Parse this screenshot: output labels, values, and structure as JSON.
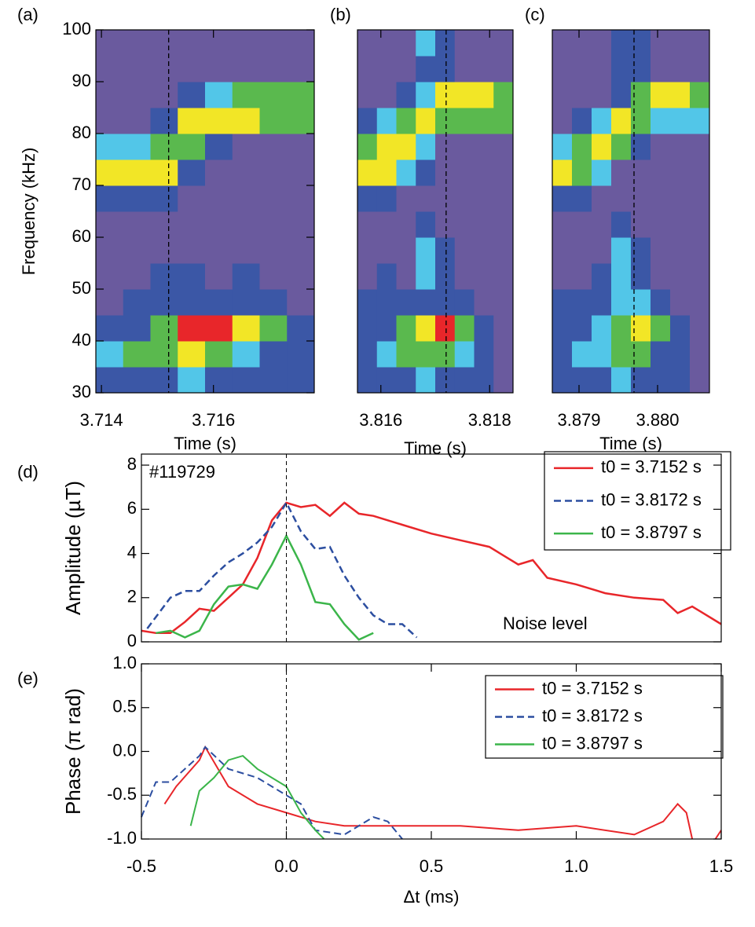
{
  "chart_data": [
    {
      "type": "heatmap",
      "label": "(a)",
      "ylabel": "Frequency (kHz)",
      "xlabel": "Time (s)",
      "xlim": [
        3.7139,
        3.7178
      ],
      "ylim": [
        30,
        100
      ],
      "xticks": [
        3.714,
        3.716
      ],
      "yticks": [
        30,
        40,
        50,
        60,
        70,
        80,
        90,
        100
      ],
      "marker": 3.7152,
      "colormap": [
        "#6a5a9e",
        "#3b57a6",
        "#52c6e8",
        "#5ab94e",
        "#f2e626",
        "#e8262a"
      ],
      "z": [
        [
          1,
          1,
          1,
          2,
          1,
          1,
          1,
          1
        ],
        [
          2,
          3,
          3,
          4,
          3,
          2,
          1,
          1
        ],
        [
          1,
          1,
          3,
          5,
          5,
          4,
          3,
          1
        ],
        [
          0,
          1,
          1,
          1,
          1,
          1,
          1,
          0
        ],
        [
          0,
          0,
          1,
          1,
          0,
          1,
          0,
          0
        ],
        [
          0,
          0,
          0,
          0,
          0,
          0,
          0,
          0
        ],
        [
          0,
          0,
          0,
          0,
          0,
          0,
          0,
          0
        ],
        [
          1,
          1,
          1,
          0,
          0,
          0,
          0,
          0
        ],
        [
          4,
          4,
          4,
          1,
          0,
          0,
          0,
          0
        ],
        [
          2,
          2,
          3,
          3,
          1,
          0,
          0,
          0
        ],
        [
          0,
          0,
          1,
          4,
          4,
          4,
          3,
          3
        ],
        [
          0,
          0,
          0,
          1,
          2,
          3,
          3,
          3
        ],
        [
          0,
          0,
          0,
          0,
          0,
          0,
          0,
          0
        ],
        [
          0,
          0,
          0,
          0,
          0,
          0,
          0,
          0
        ]
      ]
    },
    {
      "type": "heatmap",
      "label": "(b)",
      "xlabel": "Time (s)",
      "xlim": [
        3.81557,
        3.81843
      ],
      "ylim": [
        30,
        100
      ],
      "xticks": [
        3.816,
        3.818
      ],
      "marker": 3.8172,
      "colormap": [
        "#6a5a9e",
        "#3b57a6",
        "#52c6e8",
        "#5ab94e",
        "#f2e626",
        "#e8262a"
      ],
      "z": [
        [
          1,
          1,
          1,
          2,
          1,
          1,
          1,
          0
        ],
        [
          1,
          2,
          3,
          3,
          3,
          2,
          1,
          0
        ],
        [
          1,
          1,
          3,
          4,
          5,
          3,
          1,
          0
        ],
        [
          1,
          1,
          1,
          1,
          1,
          1,
          0,
          0
        ],
        [
          0,
          1,
          0,
          2,
          1,
          0,
          0,
          0
        ],
        [
          0,
          0,
          0,
          2,
          1,
          0,
          0,
          0
        ],
        [
          0,
          0,
          0,
          1,
          0,
          0,
          0,
          0
        ],
        [
          1,
          1,
          0,
          0,
          0,
          0,
          0,
          0
        ],
        [
          4,
          4,
          2,
          1,
          0,
          0,
          0,
          0
        ],
        [
          3,
          4,
          4,
          2,
          0,
          0,
          0,
          0
        ],
        [
          1,
          2,
          3,
          4,
          3,
          3,
          3,
          3
        ],
        [
          0,
          0,
          1,
          2,
          4,
          4,
          4,
          3
        ],
        [
          0,
          0,
          0,
          1,
          1,
          0,
          0,
          0
        ],
        [
          0,
          0,
          0,
          2,
          1,
          0,
          0,
          0
        ]
      ]
    },
    {
      "type": "heatmap",
      "label": "(c)",
      "xlabel": "Time (s)",
      "xlim": [
        3.87866,
        3.88066
      ],
      "ylim": [
        30,
        100
      ],
      "xticks": [
        3.879,
        {
          "value": 3.88,
          "label": "3.880"
        }
      ],
      "marker": 3.8797,
      "colormap": [
        "#6a5a9e",
        "#3b57a6",
        "#52c6e8",
        "#5ab94e",
        "#f2e626",
        "#e8262a"
      ],
      "z": [
        [
          1,
          1,
          1,
          2,
          1,
          1,
          1,
          0
        ],
        [
          1,
          2,
          2,
          3,
          3,
          1,
          1,
          0
        ],
        [
          1,
          1,
          2,
          3,
          4,
          3,
          1,
          0
        ],
        [
          1,
          1,
          1,
          2,
          2,
          1,
          0,
          0
        ],
        [
          0,
          0,
          1,
          2,
          1,
          0,
          0,
          0
        ],
        [
          0,
          0,
          0,
          2,
          1,
          0,
          0,
          0
        ],
        [
          0,
          0,
          0,
          1,
          0,
          0,
          0,
          0
        ],
        [
          1,
          1,
          0,
          0,
          0,
          0,
          0,
          0
        ],
        [
          4,
          3,
          2,
          0,
          0,
          0,
          0,
          0
        ],
        [
          2,
          3,
          4,
          3,
          1,
          0,
          0,
          0
        ],
        [
          0,
          1,
          2,
          4,
          3,
          2,
          2,
          2
        ],
        [
          0,
          0,
          0,
          1,
          3,
          4,
          4,
          3
        ],
        [
          0,
          0,
          0,
          1,
          1,
          0,
          0,
          0
        ],
        [
          0,
          0,
          0,
          1,
          1,
          0,
          0,
          0
        ]
      ]
    },
    {
      "type": "line",
      "label": "(d)",
      "annotation": "#119729",
      "note": "Noise level",
      "ylabel": "Amplitude (µT)",
      "xlim": [
        -0.5,
        1.5
      ],
      "ylim": [
        0,
        8.5
      ],
      "yticks": [
        0,
        2,
        4,
        6,
        8
      ],
      "marker": 0,
      "series": [
        {
          "name": "t0 = 3.7152 s",
          "color": "#e8262a",
          "dash": false,
          "x": [
            -0.5,
            -0.45,
            -0.4,
            -0.35,
            -0.3,
            -0.25,
            -0.2,
            -0.15,
            -0.1,
            -0.05,
            0,
            0.05,
            0.1,
            0.15,
            0.2,
            0.25,
            0.3,
            0.4,
            0.5,
            0.6,
            0.7,
            0.8,
            0.85,
            0.9,
            1.0,
            1.1,
            1.2,
            1.3,
            1.35,
            1.4,
            1.5
          ],
          "values": [
            0.5,
            0.4,
            0.4,
            0.9,
            1.5,
            1.4,
            2.0,
            2.6,
            3.8,
            5.5,
            6.3,
            6.1,
            6.2,
            5.7,
            6.3,
            5.8,
            5.7,
            5.3,
            4.9,
            4.6,
            4.3,
            3.5,
            3.7,
            2.9,
            2.6,
            2.2,
            2.0,
            1.9,
            1.3,
            1.6,
            0.8
          ]
        },
        {
          "name": "t0 = 3.8172 s",
          "color": "#2c4ea0",
          "dash": true,
          "x": [
            -0.48,
            -0.4,
            -0.35,
            -0.3,
            -0.25,
            -0.2,
            -0.15,
            -0.1,
            -0.05,
            0,
            0.05,
            0.1,
            0.15,
            0.2,
            0.25,
            0.3,
            0.35,
            0.4,
            0.45
          ],
          "values": [
            0.6,
            2.0,
            2.3,
            2.3,
            3.0,
            3.6,
            4.0,
            4.5,
            5.2,
            6.3,
            5.0,
            4.2,
            4.3,
            3.0,
            2.0,
            1.2,
            0.8,
            0.8,
            0.2
          ]
        },
        {
          "name": "t0 = 3.8797 s",
          "color": "#3bb54a",
          "dash": false,
          "x": [
            -0.45,
            -0.4,
            -0.35,
            -0.3,
            -0.25,
            -0.2,
            -0.15,
            -0.1,
            -0.05,
            0,
            0.05,
            0.1,
            0.15,
            0.2,
            0.25,
            0.3
          ],
          "values": [
            0.4,
            0.5,
            0.2,
            0.5,
            1.7,
            2.5,
            2.6,
            2.4,
            3.5,
            4.8,
            3.5,
            1.8,
            1.7,
            0.8,
            0.1,
            0.4
          ]
        }
      ]
    },
    {
      "type": "line",
      "label": "(e)",
      "ylabel": "Phase (π rad)",
      "xlabel": "Δt (ms)",
      "xlim": [
        -0.5,
        1.5
      ],
      "ylim": [
        -1,
        1
      ],
      "xticks": [
        -0.5,
        {
          "value": 0,
          "label": "0.0"
        },
        0.5,
        {
          "value": 1,
          "label": "1.0"
        },
        1.5
      ],
      "yticks": [
        {
          "value": -1,
          "label": "-1.0"
        },
        -0.5,
        {
          "value": 0,
          "label": "0.0"
        },
        0.5,
        {
          "value": 1,
          "label": "1.0"
        }
      ],
      "marker": 0,
      "series": [
        {
          "name": "t0 = 3.7152 s",
          "color": "#e8262a",
          "dash": false,
          "x": [
            -0.42,
            -0.38,
            -0.3,
            -0.28,
            -0.2,
            -0.1,
            0,
            0.1,
            0.2,
            0.4,
            0.6,
            0.8,
            1.0,
            1.2,
            1.3,
            1.35,
            1.38,
            1.4,
            1.45,
            1.48,
            1.5
          ],
          "values": [
            -0.6,
            -0.4,
            -0.1,
            0.05,
            -0.4,
            -0.6,
            -0.7,
            -0.8,
            -0.85,
            -0.85,
            -0.85,
            -0.9,
            -0.85,
            -0.95,
            -0.8,
            -0.6,
            -0.7,
            -1.0,
            null,
            -1.0,
            -0.9
          ]
        },
        {
          "name": "t0 = 3.8172 s",
          "color": "#2c4ea0",
          "dash": true,
          "x": [
            -0.5,
            -0.45,
            -0.4,
            -0.35,
            -0.3,
            -0.28,
            -0.2,
            -0.1,
            0,
            0.05,
            0.1,
            0.2,
            0.3,
            0.35,
            0.4
          ],
          "values": [
            -0.75,
            -0.35,
            -0.35,
            -0.2,
            -0.05,
            0.05,
            -0.2,
            -0.3,
            -0.5,
            -0.6,
            -0.9,
            -0.95,
            -0.75,
            -0.8,
            -1.0
          ]
        },
        {
          "name": "t0 = 3.8797 s",
          "color": "#3bb54a",
          "dash": false,
          "x": [
            -0.33,
            -0.3,
            -0.25,
            -0.2,
            -0.15,
            -0.1,
            -0.05,
            0,
            0.05,
            0.1,
            0.13
          ],
          "values": [
            -0.85,
            -0.45,
            -0.3,
            -0.1,
            -0.05,
            -0.2,
            -0.3,
            -0.4,
            -0.7,
            -0.9,
            -1.0
          ]
        }
      ]
    }
  ]
}
